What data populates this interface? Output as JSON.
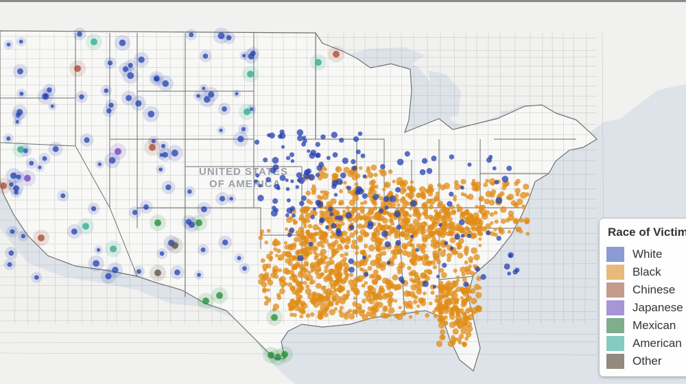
{
  "map": {
    "country_label_line1": "UNITED STATES",
    "country_label_line2": "OF AMERICA",
    "water_color": "#dde3e8",
    "land_color": "#f6f6f4",
    "border_color": "#7b7b7b"
  },
  "legend": {
    "title": "Race of Victim",
    "items": [
      {
        "label": "White",
        "color": "#8c9bd4"
      },
      {
        "label": "Black",
        "color": "#e7b97a"
      },
      {
        "label": "Chinese",
        "color": "#c69a8c"
      },
      {
        "label": "Japanese",
        "color": "#a795d6"
      },
      {
        "label": "Mexican",
        "color": "#7fae8c"
      },
      {
        "label": "American Indian",
        "color": "#86cbbf"
      },
      {
        "label": "Other",
        "color": "#928a7e"
      }
    ]
  },
  "marker_colors": {
    "White": "#2340b0",
    "Black": "#e08c17",
    "Chinese": "#a3452f",
    "Japanese": "#6a3fbf",
    "Mexican": "#1e8a34",
    "American Indian": "#2aa98e",
    "Other": "#5a4f40"
  }
}
